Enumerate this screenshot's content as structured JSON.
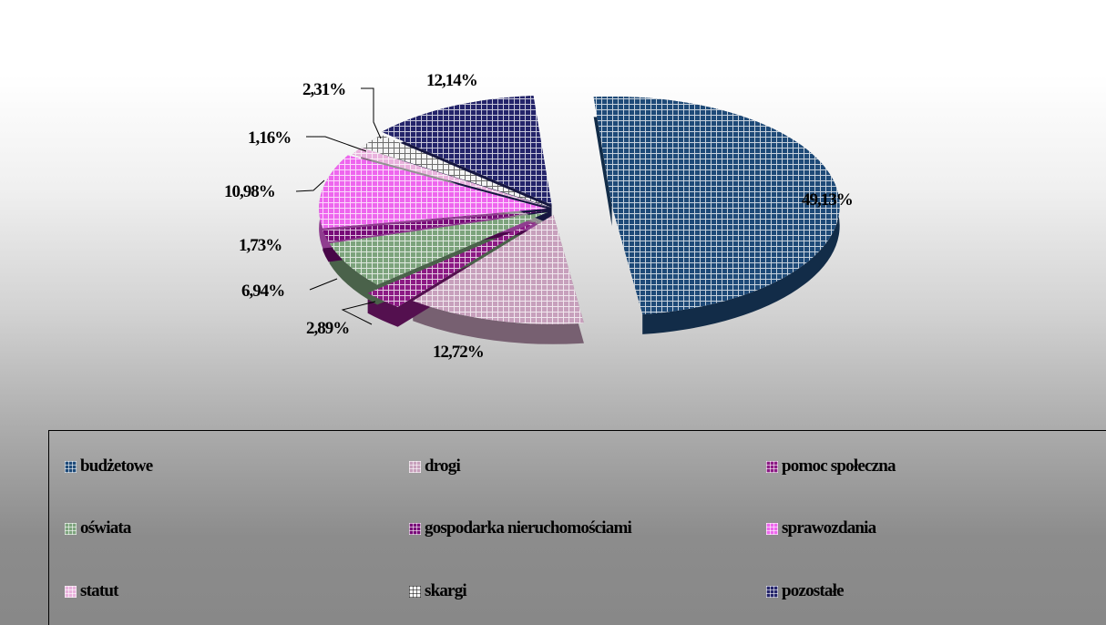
{
  "chart_data": {
    "type": "pie",
    "style": "exploded 3D pie",
    "categories": [
      "budżetowe",
      "drogi",
      "pomoc społeczna",
      "oświata",
      "gospodarka nieruchomościami",
      "sprawozdania",
      "statut",
      "skargi",
      "pozostałe"
    ],
    "values": [
      49.13,
      12.72,
      2.89,
      6.94,
      1.73,
      10.98,
      1.16,
      2.31,
      12.14
    ],
    "labels": [
      "49,13%",
      "12,72%",
      "2,89%",
      "6,94%",
      "1,73%",
      "10,98%",
      "1,16%",
      "2,31%",
      "12,14%"
    ],
    "legend": {
      "placement": "bottom",
      "entries": [
        "budżetowe",
        "drogi",
        "pomoc społeczna",
        "oświata",
        "gospodarka nieruchomościami",
        "sprawozdania",
        "statut",
        "skargi",
        "pozostałe"
      ]
    },
    "colors": [
      "#1e4a78",
      "#c7a0bc",
      "#8c1a84",
      "#7ca37c",
      "#780a78",
      "#ee66ee",
      "#e9b2dd",
      "#f4f4f4",
      "#24246a"
    ]
  }
}
